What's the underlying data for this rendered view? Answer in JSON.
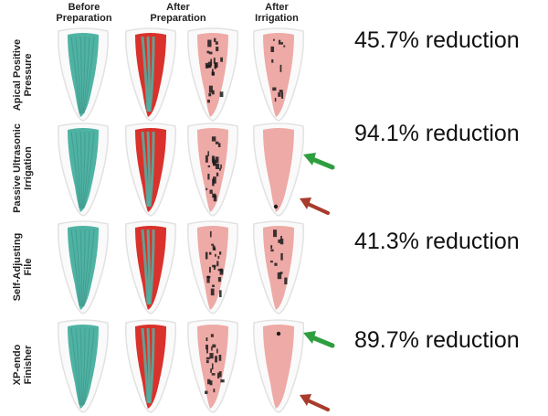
{
  "columns": [
    {
      "label": "Before\nPreparation"
    },
    {
      "label": "After\nPreparation"
    },
    {
      "label": "After\nIrrigation"
    }
  ],
  "rows": [
    {
      "label": "Apical Positive\nPressure",
      "reduction": "45.7% reduction"
    },
    {
      "label": "Passive Ultrasonic\nIrrigation",
      "reduction": "94.1% reduction"
    },
    {
      "label": "Self-Adjusting\nFile",
      "reduction": "41.3% reduction"
    },
    {
      "label": "XP-endo\nFinisher",
      "reduction": "89.7% reduction"
    }
  ],
  "colors": {
    "tooth_outline": "#e2e2e2",
    "canal_teal": "#4fb3a4",
    "canal_red": "#d9312b",
    "canal_pink": "#eeaaa6",
    "debris_black": "#1b1b1b",
    "arrow_green": "#2e9e3e",
    "arrow_brown": "#a83b2b"
  },
  "arrows": [
    {
      "row": 1,
      "color": "arrow_green"
    },
    {
      "row": 1,
      "color": "arrow_brown"
    },
    {
      "row": 3,
      "color": "arrow_green"
    },
    {
      "row": 3,
      "color": "arrow_brown"
    }
  ]
}
